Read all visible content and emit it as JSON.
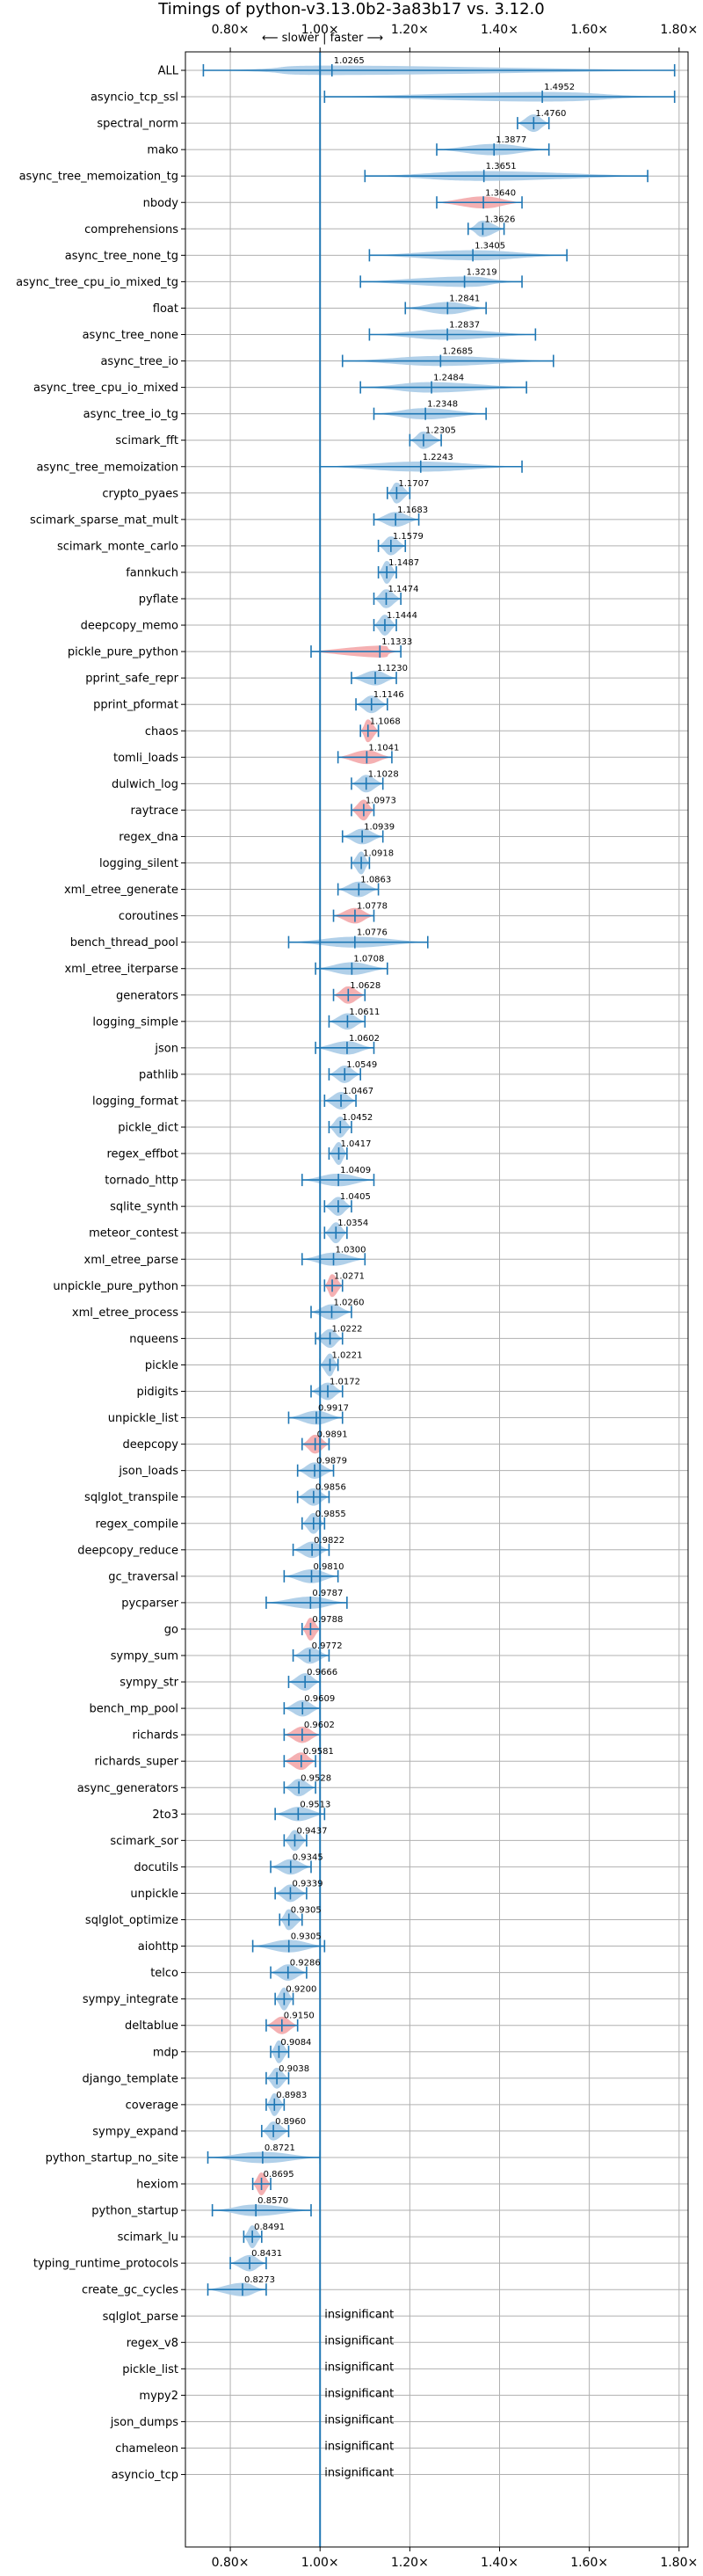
{
  "chart_data": {
    "type": "violin",
    "title": "Timings of python-v3.13.0b2-3a83b17 vs. 3.12.0",
    "subtitle": "⟵ slower | faster ⟶",
    "xlim": [
      0.7,
      1.82
    ],
    "xticks": [
      0.8,
      1.0,
      1.2,
      1.4,
      1.6,
      1.8
    ],
    "xtick_labels": [
      "0.80×",
      "1.00×",
      "1.20×",
      "1.40×",
      "1.60×",
      "1.80×"
    ],
    "reference_line": 1.0,
    "grid": true,
    "benchmarks": [
      {
        "name": "ALL",
        "value": 1.0265,
        "label": "1.0265",
        "low": 0.74,
        "high": 1.79,
        "color": "blue"
      },
      {
        "name": "asyncio_tcp_ssl",
        "value": 1.4952,
        "label": "1.4952",
        "low": 1.01,
        "high": 1.79,
        "color": "blue"
      },
      {
        "name": "spectral_norm",
        "value": 1.476,
        "label": "1.4760",
        "low": 1.44,
        "high": 1.51,
        "color": "blue"
      },
      {
        "name": "mako",
        "value": 1.3877,
        "label": "1.3877",
        "low": 1.26,
        "high": 1.51,
        "color": "blue"
      },
      {
        "name": "async_tree_memoization_tg",
        "value": 1.3651,
        "label": "1.3651",
        "low": 1.1,
        "high": 1.73,
        "color": "blue"
      },
      {
        "name": "nbody",
        "value": 1.364,
        "label": "1.3640",
        "low": 1.26,
        "high": 1.45,
        "color": "red"
      },
      {
        "name": "comprehensions",
        "value": 1.3626,
        "label": "1.3626",
        "low": 1.33,
        "high": 1.41,
        "color": "blue"
      },
      {
        "name": "async_tree_none_tg",
        "value": 1.3405,
        "label": "1.3405",
        "low": 1.11,
        "high": 1.55,
        "color": "blue"
      },
      {
        "name": "async_tree_cpu_io_mixed_tg",
        "value": 1.3219,
        "label": "1.3219",
        "low": 1.09,
        "high": 1.45,
        "color": "blue"
      },
      {
        "name": "float",
        "value": 1.2841,
        "label": "1.2841",
        "low": 1.19,
        "high": 1.37,
        "color": "blue"
      },
      {
        "name": "async_tree_none",
        "value": 1.2837,
        "label": "1.2837",
        "low": 1.11,
        "high": 1.48,
        "color": "blue"
      },
      {
        "name": "async_tree_io",
        "value": 1.2685,
        "label": "1.2685",
        "low": 1.05,
        "high": 1.52,
        "color": "blue"
      },
      {
        "name": "async_tree_cpu_io_mixed",
        "value": 1.2484,
        "label": "1.2484",
        "low": 1.09,
        "high": 1.46,
        "color": "blue"
      },
      {
        "name": "async_tree_io_tg",
        "value": 1.2348,
        "label": "1.2348",
        "low": 1.12,
        "high": 1.37,
        "color": "blue"
      },
      {
        "name": "scimark_fft",
        "value": 1.2305,
        "label": "1.2305",
        "low": 1.2,
        "high": 1.27,
        "color": "blue"
      },
      {
        "name": "async_tree_memoization",
        "value": 1.2243,
        "label": "1.2243",
        "low": 1.0,
        "high": 1.45,
        "color": "blue"
      },
      {
        "name": "crypto_pyaes",
        "value": 1.1707,
        "label": "1.1707",
        "low": 1.15,
        "high": 1.2,
        "color": "blue"
      },
      {
        "name": "scimark_sparse_mat_mult",
        "value": 1.1683,
        "label": "1.1683",
        "low": 1.12,
        "high": 1.22,
        "color": "blue"
      },
      {
        "name": "scimark_monte_carlo",
        "value": 1.1579,
        "label": "1.1579",
        "low": 1.13,
        "high": 1.19,
        "color": "blue"
      },
      {
        "name": "fannkuch",
        "value": 1.1487,
        "label": "1.1487",
        "low": 1.13,
        "high": 1.17,
        "color": "blue"
      },
      {
        "name": "pyflate",
        "value": 1.1474,
        "label": "1.1474",
        "low": 1.12,
        "high": 1.18,
        "color": "blue"
      },
      {
        "name": "deepcopy_memo",
        "value": 1.1444,
        "label": "1.1444",
        "low": 1.12,
        "high": 1.17,
        "color": "blue"
      },
      {
        "name": "pickle_pure_python",
        "value": 1.1333,
        "label": "1.1333",
        "low": 0.98,
        "high": 1.18,
        "color": "red"
      },
      {
        "name": "pprint_safe_repr",
        "value": 1.123,
        "label": "1.1230",
        "low": 1.07,
        "high": 1.17,
        "color": "blue"
      },
      {
        "name": "pprint_pformat",
        "value": 1.1146,
        "label": "1.1146",
        "low": 1.08,
        "high": 1.15,
        "color": "blue"
      },
      {
        "name": "chaos",
        "value": 1.1068,
        "label": "1.1068",
        "low": 1.09,
        "high": 1.13,
        "color": "red"
      },
      {
        "name": "tomli_loads",
        "value": 1.1041,
        "label": "1.1041",
        "low": 1.04,
        "high": 1.16,
        "color": "red"
      },
      {
        "name": "dulwich_log",
        "value": 1.1028,
        "label": "1.1028",
        "low": 1.07,
        "high": 1.14,
        "color": "blue"
      },
      {
        "name": "raytrace",
        "value": 1.0973,
        "label": "1.0973",
        "low": 1.07,
        "high": 1.12,
        "color": "red"
      },
      {
        "name": "regex_dna",
        "value": 1.0939,
        "label": "1.0939",
        "low": 1.05,
        "high": 1.14,
        "color": "blue"
      },
      {
        "name": "logging_silent",
        "value": 1.0918,
        "label": "1.0918",
        "low": 1.07,
        "high": 1.11,
        "color": "blue"
      },
      {
        "name": "xml_etree_generate",
        "value": 1.0863,
        "label": "1.0863",
        "low": 1.04,
        "high": 1.13,
        "color": "blue"
      },
      {
        "name": "coroutines",
        "value": 1.0778,
        "label": "1.0778",
        "low": 1.03,
        "high": 1.12,
        "color": "red"
      },
      {
        "name": "bench_thread_pool",
        "value": 1.0776,
        "label": "1.0776",
        "low": 0.93,
        "high": 1.24,
        "color": "blue"
      },
      {
        "name": "xml_etree_iterparse",
        "value": 1.0708,
        "label": "1.0708",
        "low": 0.99,
        "high": 1.15,
        "color": "blue"
      },
      {
        "name": "generators",
        "value": 1.0628,
        "label": "1.0628",
        "low": 1.03,
        "high": 1.1,
        "color": "red"
      },
      {
        "name": "logging_simple",
        "value": 1.0611,
        "label": "1.0611",
        "low": 1.02,
        "high": 1.1,
        "color": "blue"
      },
      {
        "name": "json",
        "value": 1.0602,
        "label": "1.0602",
        "low": 0.99,
        "high": 1.12,
        "color": "blue"
      },
      {
        "name": "pathlib",
        "value": 1.0549,
        "label": "1.0549",
        "low": 1.02,
        "high": 1.09,
        "color": "blue"
      },
      {
        "name": "logging_format",
        "value": 1.0467,
        "label": "1.0467",
        "low": 1.01,
        "high": 1.08,
        "color": "blue"
      },
      {
        "name": "pickle_dict",
        "value": 1.0452,
        "label": "1.0452",
        "low": 1.02,
        "high": 1.07,
        "color": "blue"
      },
      {
        "name": "regex_effbot",
        "value": 1.0417,
        "label": "1.0417",
        "low": 1.02,
        "high": 1.06,
        "color": "blue"
      },
      {
        "name": "tornado_http",
        "value": 1.0409,
        "label": "1.0409",
        "low": 0.96,
        "high": 1.12,
        "color": "blue"
      },
      {
        "name": "sqlite_synth",
        "value": 1.0405,
        "label": "1.0405",
        "low": 1.01,
        "high": 1.07,
        "color": "blue"
      },
      {
        "name": "meteor_contest",
        "value": 1.0354,
        "label": "1.0354",
        "low": 1.01,
        "high": 1.06,
        "color": "blue"
      },
      {
        "name": "xml_etree_parse",
        "value": 1.03,
        "label": "1.0300",
        "low": 0.96,
        "high": 1.1,
        "color": "blue"
      },
      {
        "name": "unpickle_pure_python",
        "value": 1.0271,
        "label": "1.0271",
        "low": 1.01,
        "high": 1.05,
        "color": "red"
      },
      {
        "name": "xml_etree_process",
        "value": 1.026,
        "label": "1.0260",
        "low": 0.98,
        "high": 1.07,
        "color": "blue"
      },
      {
        "name": "nqueens",
        "value": 1.0222,
        "label": "1.0222",
        "low": 0.99,
        "high": 1.05,
        "color": "blue"
      },
      {
        "name": "pickle",
        "value": 1.0221,
        "label": "1.0221",
        "low": 1.0,
        "high": 1.04,
        "color": "blue"
      },
      {
        "name": "pidigits",
        "value": 1.0172,
        "label": "1.0172",
        "low": 0.98,
        "high": 1.05,
        "color": "blue"
      },
      {
        "name": "unpickle_list",
        "value": 0.9917,
        "label": "0.9917",
        "low": 0.93,
        "high": 1.05,
        "color": "blue"
      },
      {
        "name": "deepcopy",
        "value": 0.9891,
        "label": "0.9891",
        "low": 0.96,
        "high": 1.02,
        "color": "red"
      },
      {
        "name": "json_loads",
        "value": 0.9879,
        "label": "0.9879",
        "low": 0.95,
        "high": 1.03,
        "color": "blue"
      },
      {
        "name": "sqlglot_transpile",
        "value": 0.9856,
        "label": "0.9856",
        "low": 0.95,
        "high": 1.02,
        "color": "blue"
      },
      {
        "name": "regex_compile",
        "value": 0.9855,
        "label": "0.9855",
        "low": 0.96,
        "high": 1.01,
        "color": "blue"
      },
      {
        "name": "deepcopy_reduce",
        "value": 0.9822,
        "label": "0.9822",
        "low": 0.94,
        "high": 1.02,
        "color": "blue"
      },
      {
        "name": "gc_traversal",
        "value": 0.981,
        "label": "0.9810",
        "low": 0.92,
        "high": 1.04,
        "color": "blue"
      },
      {
        "name": "pycparser",
        "value": 0.9787,
        "label": "0.9787",
        "low": 0.88,
        "high": 1.06,
        "color": "blue"
      },
      {
        "name": "go",
        "value": 0.9788,
        "label": "0.9788",
        "low": 0.96,
        "high": 1.0,
        "color": "red"
      },
      {
        "name": "sympy_sum",
        "value": 0.9772,
        "label": "0.9772",
        "low": 0.94,
        "high": 1.02,
        "color": "blue"
      },
      {
        "name": "sympy_str",
        "value": 0.9666,
        "label": "0.9666",
        "low": 0.93,
        "high": 1.0,
        "color": "blue"
      },
      {
        "name": "bench_mp_pool",
        "value": 0.9609,
        "label": "0.9609",
        "low": 0.92,
        "high": 1.0,
        "color": "blue"
      },
      {
        "name": "richards",
        "value": 0.9602,
        "label": "0.9602",
        "low": 0.92,
        "high": 1.0,
        "color": "red"
      },
      {
        "name": "richards_super",
        "value": 0.9581,
        "label": "0.9581",
        "low": 0.92,
        "high": 0.99,
        "color": "red"
      },
      {
        "name": "async_generators",
        "value": 0.9528,
        "label": "0.9528",
        "low": 0.92,
        "high": 0.99,
        "color": "blue"
      },
      {
        "name": "2to3",
        "value": 0.9513,
        "label": "0.9513",
        "low": 0.9,
        "high": 1.01,
        "color": "blue"
      },
      {
        "name": "scimark_sor",
        "value": 0.9437,
        "label": "0.9437",
        "low": 0.92,
        "high": 0.97,
        "color": "blue"
      },
      {
        "name": "docutils",
        "value": 0.9345,
        "label": "0.9345",
        "low": 0.89,
        "high": 0.98,
        "color": "blue"
      },
      {
        "name": "unpickle",
        "value": 0.9339,
        "label": "0.9339",
        "low": 0.9,
        "high": 0.97,
        "color": "blue"
      },
      {
        "name": "sqlglot_optimize",
        "value": 0.9305,
        "label": "0.9305",
        "low": 0.91,
        "high": 0.96,
        "color": "blue"
      },
      {
        "name": "aiohttp",
        "value": 0.9305,
        "label": "0.9305",
        "low": 0.85,
        "high": 1.01,
        "color": "blue"
      },
      {
        "name": "telco",
        "value": 0.9286,
        "label": "0.9286",
        "low": 0.89,
        "high": 0.97,
        "color": "blue"
      },
      {
        "name": "sympy_integrate",
        "value": 0.92,
        "label": "0.9200",
        "low": 0.9,
        "high": 0.94,
        "color": "blue"
      },
      {
        "name": "deltablue",
        "value": 0.915,
        "label": "0.9150",
        "low": 0.88,
        "high": 0.95,
        "color": "red"
      },
      {
        "name": "mdp",
        "value": 0.9084,
        "label": "0.9084",
        "low": 0.89,
        "high": 0.93,
        "color": "blue"
      },
      {
        "name": "django_template",
        "value": 0.9038,
        "label": "0.9038",
        "low": 0.88,
        "high": 0.93,
        "color": "blue"
      },
      {
        "name": "coverage",
        "value": 0.8983,
        "label": "0.8983",
        "low": 0.88,
        "high": 0.92,
        "color": "blue"
      },
      {
        "name": "sympy_expand",
        "value": 0.896,
        "label": "0.8960",
        "low": 0.87,
        "high": 0.93,
        "color": "blue"
      },
      {
        "name": "python_startup_no_site",
        "value": 0.8721,
        "label": "0.8721",
        "low": 0.75,
        "high": 1.0,
        "color": "blue"
      },
      {
        "name": "hexiom",
        "value": 0.8695,
        "label": "0.8695",
        "low": 0.85,
        "high": 0.89,
        "color": "red"
      },
      {
        "name": "python_startup",
        "value": 0.857,
        "label": "0.8570",
        "low": 0.76,
        "high": 0.98,
        "color": "blue"
      },
      {
        "name": "scimark_lu",
        "value": 0.8491,
        "label": "0.8491",
        "low": 0.83,
        "high": 0.87,
        "color": "blue"
      },
      {
        "name": "typing_runtime_protocols",
        "value": 0.8431,
        "label": "0.8431",
        "low": 0.8,
        "high": 0.88,
        "color": "blue"
      },
      {
        "name": "create_gc_cycles",
        "value": 0.8273,
        "label": "0.8273",
        "low": 0.75,
        "high": 0.88,
        "color": "blue"
      },
      {
        "name": "sqlglot_parse",
        "value": null,
        "label": "insignificant"
      },
      {
        "name": "regex_v8",
        "value": null,
        "label": "insignificant"
      },
      {
        "name": "pickle_list",
        "value": null,
        "label": "insignificant"
      },
      {
        "name": "mypy2",
        "value": null,
        "label": "insignificant"
      },
      {
        "name": "json_dumps",
        "value": null,
        "label": "insignificant"
      },
      {
        "name": "chameleon",
        "value": null,
        "label": "insignificant"
      },
      {
        "name": "asyncio_tcp",
        "value": null,
        "label": "insignificant"
      }
    ],
    "colors": {
      "violin_blue": "#a9cbe7",
      "violin_red": "#f3a7aa",
      "line": "#1f77b4",
      "grid": "#b0b0b0",
      "axis": "#000000"
    }
  }
}
